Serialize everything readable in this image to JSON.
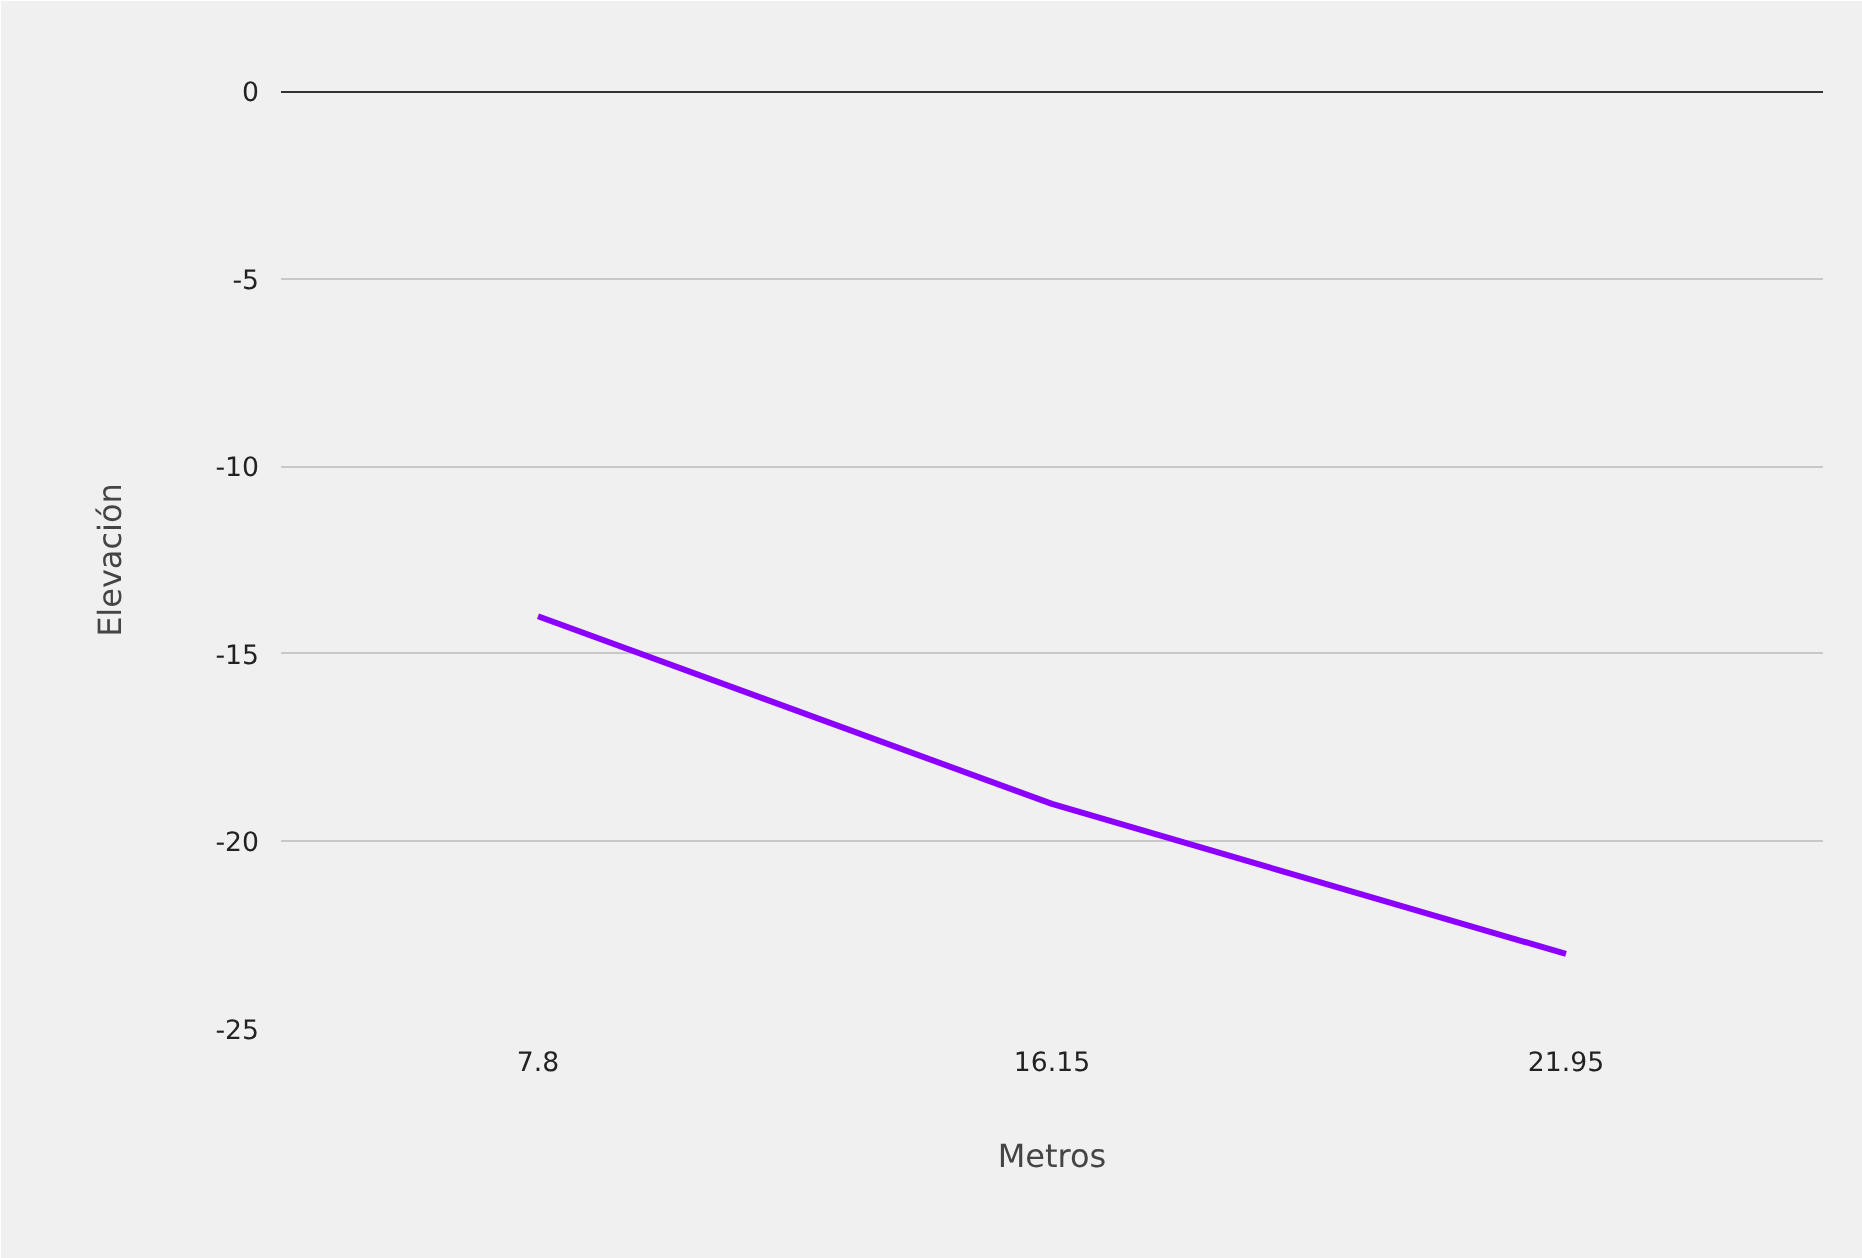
{
  "chart_data": {
    "type": "line",
    "xlabel": "Metros",
    "ylabel": "Elevación",
    "categories": [
      "7.8",
      "16.15",
      "21.95"
    ],
    "series": [
      {
        "color": "#8b00ff",
        "values": [
          -14,
          -19,
          -23
        ]
      }
    ],
    "ylim": [
      -25,
      0
    ],
    "yticks": [
      -25,
      -20,
      -15,
      -10,
      -5,
      0
    ],
    "grid": "y",
    "marker": "none",
    "line_style": "solid",
    "ref_lines": [
      {
        "axis": "y",
        "value": 0,
        "color": "#333333"
      }
    ]
  }
}
